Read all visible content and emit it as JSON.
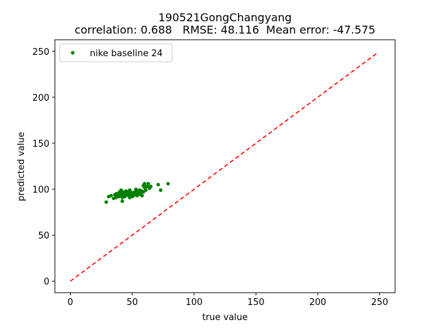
{
  "chart_data": {
    "type": "scatter",
    "title": "190521GongChangyang",
    "subtitle": "correlation: 0.688   RMSE: 48.116  Mean error: -47.575",
    "xlabel": "true value",
    "ylabel": "predicted value",
    "xlim": [
      -12.5,
      262.5
    ],
    "ylim": [
      -12.5,
      262.5
    ],
    "xticks": [
      "0",
      "50",
      "100",
      "150",
      "200",
      "250"
    ],
    "yticks": [
      "0",
      "50",
      "100",
      "150",
      "200",
      "250"
    ],
    "grid": false,
    "legend_position": "upper-left",
    "series": [
      {
        "name": "nike baseline 24",
        "color": "#008000",
        "marker": "dot",
        "points": [
          [
            29,
            86
          ],
          [
            31,
            92
          ],
          [
            33,
            93
          ],
          [
            35,
            90
          ],
          [
            36,
            94
          ],
          [
            37,
            91
          ],
          [
            37,
            95
          ],
          [
            38,
            93
          ],
          [
            39,
            92
          ],
          [
            39,
            96
          ],
          [
            40,
            94
          ],
          [
            40,
            97
          ],
          [
            41,
            93
          ],
          [
            41,
            99
          ],
          [
            42,
            95
          ],
          [
            42,
            91
          ],
          [
            42,
            87
          ],
          [
            43,
            94
          ],
          [
            43,
            97
          ],
          [
            44,
            96
          ],
          [
            44,
            92
          ],
          [
            45,
            98
          ],
          [
            45,
            95
          ],
          [
            46,
            94
          ],
          [
            46,
            97
          ],
          [
            47,
            96
          ],
          [
            47,
            93
          ],
          [
            48,
            99
          ],
          [
            48,
            95
          ],
          [
            48,
            91
          ],
          [
            49,
            97
          ],
          [
            49,
            94
          ],
          [
            50,
            92
          ],
          [
            50,
            96
          ],
          [
            51,
            95
          ],
          [
            51,
            93
          ],
          [
            52,
            97
          ],
          [
            52,
            94
          ],
          [
            53,
            96
          ],
          [
            53,
            100
          ],
          [
            54,
            93
          ],
          [
            54,
            98
          ],
          [
            55,
            95
          ],
          [
            55,
            97
          ],
          [
            56,
            99
          ],
          [
            57,
            96
          ],
          [
            57,
            94
          ],
          [
            58,
            93
          ],
          [
            58,
            98
          ],
          [
            59,
            104
          ],
          [
            59,
            97
          ],
          [
            60,
            102
          ],
          [
            60,
            106
          ],
          [
            61,
            99
          ],
          [
            62,
            103
          ],
          [
            63,
            106
          ],
          [
            64,
            101
          ],
          [
            65,
            103
          ],
          [
            71,
            105
          ],
          [
            73,
            99
          ],
          [
            79,
            106
          ]
        ]
      },
      {
        "name": "",
        "color": "#ff0000",
        "line_style": "dashed",
        "type": "line",
        "x": [
          0,
          249
        ],
        "values": [
          0,
          249
        ]
      }
    ]
  }
}
